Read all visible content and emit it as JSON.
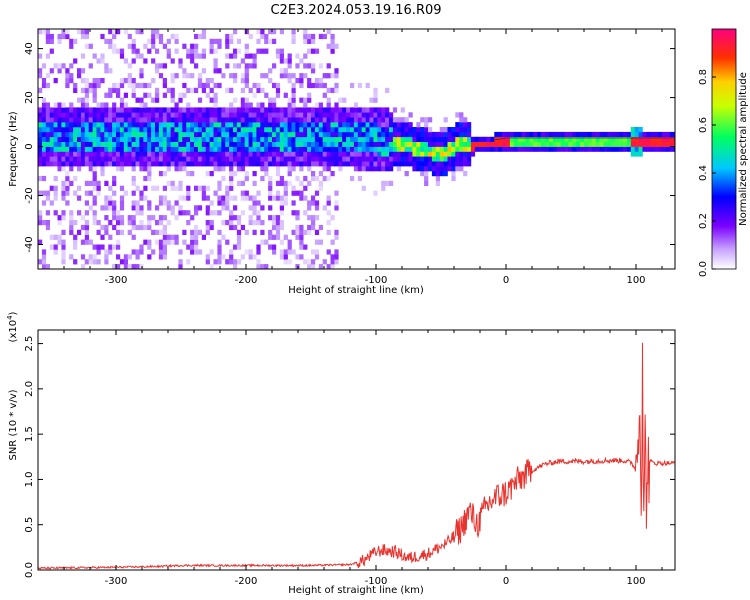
{
  "title": "C2E3.2024.053.19.16.R09",
  "chart_data": [
    {
      "type": "heatmap",
      "xlabel": "Height of straight line (km)",
      "ylabel": "Frequency (Hz)",
      "xlim": [
        -360,
        130
      ],
      "ylim": [
        -50,
        48
      ],
      "x_ticks": [
        -300,
        -200,
        -100,
        0,
        100
      ],
      "y_ticks": [
        40,
        20,
        0,
        -20,
        -40
      ],
      "colorbar": {
        "label": "Normalized spectral amplitude",
        "range": [
          0,
          1
        ],
        "ticks": [
          0.0,
          0.2,
          0.4,
          0.6,
          0.8
        ]
      },
      "ridge": [
        {
          "x": -360,
          "y": 3
        },
        {
          "x": -300,
          "y": 3
        },
        {
          "x": -250,
          "y": 3
        },
        {
          "x": -200,
          "y": 3
        },
        {
          "x": -150,
          "y": 3
        },
        {
          "x": -120,
          "y": 3
        },
        {
          "x": -100,
          "y": 2
        },
        {
          "x": -80,
          "y": 0
        },
        {
          "x": -60,
          "y": -3
        },
        {
          "x": -50,
          "y": -4
        },
        {
          "x": -40,
          "y": -1
        },
        {
          "x": -25,
          "y": 0
        },
        {
          "x": -10,
          "y": 0
        },
        {
          "x": 0,
          "y": 1
        },
        {
          "x": 50,
          "y": 1
        },
        {
          "x": 100,
          "y": 1
        },
        {
          "x": 130,
          "y": 1
        }
      ],
      "grid": false
    },
    {
      "type": "line",
      "xlabel": "Height of straight line (km)",
      "ylabel": "SNR (10 * v/v)",
      "y_multiplier": "(x10",
      "y_multiplier_exp": "4",
      "y_multiplier_close": ")",
      "xlim": [
        -360,
        130
      ],
      "ylim": [
        0,
        2.65
      ],
      "x_ticks": [
        -300,
        -200,
        -100,
        0,
        100
      ],
      "y_ticks": [
        0.0,
        0.5,
        1.0,
        1.5,
        2.0,
        2.5
      ],
      "series": [
        {
          "color": "#e8322d",
          "points": [
            [
              -360,
              0.02
            ],
            [
              -300,
              0.03
            ],
            [
              -265,
              0.04
            ],
            [
              -250,
              0.05
            ],
            [
              -200,
              0.05
            ],
            [
              -150,
              0.05
            ],
            [
              -120,
              0.06
            ],
            [
              -110,
              0.1
            ],
            [
              -100,
              0.2
            ],
            [
              -95,
              0.22
            ],
            [
              -85,
              0.2
            ],
            [
              -75,
              0.13
            ],
            [
              -60,
              0.18
            ],
            [
              -45,
              0.3
            ],
            [
              -35,
              0.45
            ],
            [
              -28,
              0.65
            ],
            [
              -22,
              0.5
            ],
            [
              -15,
              0.7
            ],
            [
              -10,
              0.78
            ],
            [
              -5,
              0.82
            ],
            [
              0,
              0.85
            ],
            [
              10,
              1.0
            ],
            [
              20,
              1.1
            ],
            [
              30,
              1.17
            ],
            [
              40,
              1.2
            ],
            [
              60,
              1.2
            ],
            [
              80,
              1.21
            ],
            [
              90,
              1.21
            ],
            [
              97,
              1.18
            ],
            [
              100,
              1.1
            ],
            [
              102,
              1.6
            ],
            [
              103,
              2.2
            ],
            [
              104,
              0.6
            ],
            [
              105,
              2.6
            ],
            [
              106,
              0.3
            ],
            [
              107,
              1.4
            ],
            [
              108,
              0.9
            ],
            [
              110,
              1.2
            ],
            [
              115,
              1.18
            ],
            [
              130,
              1.18
            ]
          ]
        }
      ],
      "grid": false
    }
  ]
}
